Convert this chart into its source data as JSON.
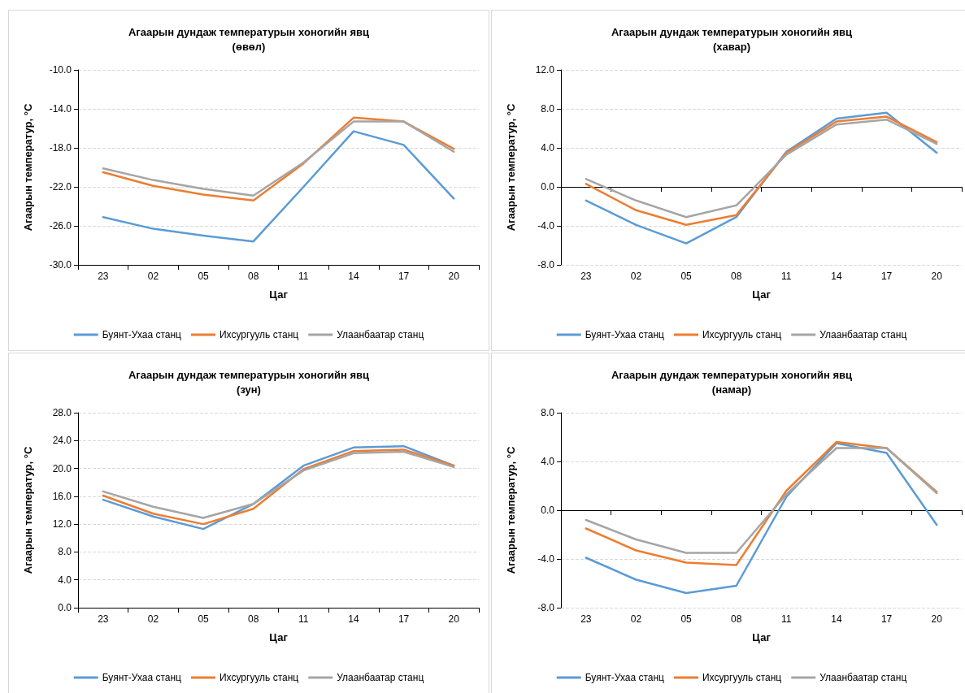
{
  "chart_data": [
    {
      "type": "line",
      "title": "Агаарын дундаж температурын хоногийн явц\n(өвөл)",
      "xlabel": "Цаг",
      "ylabel": "Агаарын температур, °C",
      "categories": [
        "23",
        "02",
        "05",
        "08",
        "11",
        "14",
        "17",
        "20"
      ],
      "ylim": [
        -30,
        -10
      ],
      "yticks": [
        {
          "value": -30,
          "label": "-30.0"
        },
        {
          "value": -26,
          "label": "-26.0"
        },
        {
          "value": -22,
          "label": "-22.0"
        },
        {
          "value": -18,
          "label": "-18.0"
        },
        {
          "value": -14,
          "label": "-14.0"
        },
        {
          "value": -10,
          "label": "-10.0"
        }
      ],
      "grid": "y",
      "legend": "bottom",
      "marker": "none",
      "line_style": "solid",
      "series": [
        {
          "name": "Буянт-Ухаа станц",
          "color": "#5b9bd5",
          "values": [
            -25.1,
            -26.3,
            -27.0,
            -27.6,
            -22.0,
            -16.3,
            -17.7,
            -23.2
          ]
        },
        {
          "name": "Ихсургууль станц",
          "color": "#ed7d31",
          "values": [
            -20.5,
            -21.9,
            -22.8,
            -23.4,
            -19.6,
            -14.9,
            -15.3,
            -18.1
          ]
        },
        {
          "name": "Улаанбаатар станц",
          "color": "#a5a5a5",
          "values": [
            -20.1,
            -21.3,
            -22.2,
            -22.9,
            -19.5,
            -15.3,
            -15.3,
            -18.4
          ]
        }
      ]
    },
    {
      "type": "line",
      "title": "Агаарын дундаж температурын хоногийн явц\n(хавар)",
      "xlabel": "Цаг",
      "ylabel": "Агаарын температур, °C",
      "categories": [
        "23",
        "02",
        "05",
        "08",
        "11",
        "14",
        "17",
        "20"
      ],
      "ylim": [
        -8,
        12
      ],
      "yticks": [
        {
          "value": -8,
          "label": "-8.0"
        },
        {
          "value": -4,
          "label": "-4.0"
        },
        {
          "value": 0,
          "label": "0.0"
        },
        {
          "value": 4,
          "label": "4.0"
        },
        {
          "value": 8,
          "label": "8.0"
        },
        {
          "value": 12,
          "label": "12.0"
        }
      ],
      "grid": "y",
      "legend": "bottom",
      "marker": "none",
      "line_style": "solid",
      "series": [
        {
          "name": "Буянт-Ухаа станц",
          "color": "#5b9bd5",
          "values": [
            -1.4,
            -3.9,
            -5.8,
            -3.1,
            3.6,
            7.0,
            7.6,
            3.5
          ]
        },
        {
          "name": "Ихсургууль станц",
          "color": "#ed7d31",
          "values": [
            0.3,
            -2.4,
            -3.9,
            -2.9,
            3.5,
            6.7,
            7.2,
            4.6
          ]
        },
        {
          "name": "Улаанбаатар станц",
          "color": "#a5a5a5",
          "values": [
            0.8,
            -1.4,
            -3.1,
            -1.9,
            3.3,
            6.4,
            6.9,
            4.4
          ]
        }
      ]
    },
    {
      "type": "line",
      "title": "Агаарын дундаж температурын хоногийн явц\n(зун)",
      "xlabel": "Цаг",
      "ylabel": "Агаарын температур, °C",
      "categories": [
        "23",
        "02",
        "05",
        "08",
        "11",
        "14",
        "17",
        "20"
      ],
      "ylim": [
        0,
        28
      ],
      "yticks": [
        {
          "value": 0,
          "label": "0.0"
        },
        {
          "value": 4,
          "label": "4.0"
        },
        {
          "value": 8,
          "label": "8.0"
        },
        {
          "value": 12,
          "label": "12.0"
        },
        {
          "value": 16,
          "label": "16.0"
        },
        {
          "value": 20,
          "label": "20.0"
        },
        {
          "value": 24,
          "label": "24.0"
        },
        {
          "value": 28,
          "label": "28.0"
        }
      ],
      "grid": "y",
      "legend": "bottom",
      "marker": "none",
      "line_style": "solid",
      "series": [
        {
          "name": "Буянт-Ухаа станц",
          "color": "#5b9bd5",
          "values": [
            15.5,
            13.1,
            11.3,
            14.9,
            20.4,
            23.0,
            23.2,
            20.4
          ]
        },
        {
          "name": "Ихсургууль станц",
          "color": "#ed7d31",
          "values": [
            16.1,
            13.5,
            12.0,
            14.2,
            19.9,
            22.5,
            22.7,
            20.4
          ]
        },
        {
          "name": "Улаанбаатар станц",
          "color": "#a5a5a5",
          "values": [
            16.7,
            14.5,
            12.9,
            14.9,
            19.7,
            22.2,
            22.4,
            20.2
          ]
        }
      ]
    },
    {
      "type": "line",
      "title": "Агаарын дундаж температурын хоногийн явц\n(намар)",
      "xlabel": "Цаг",
      "ylabel": "Агаарын температур, °C",
      "categories": [
        "23",
        "02",
        "05",
        "08",
        "11",
        "14",
        "17",
        "20"
      ],
      "ylim": [
        -8,
        8
      ],
      "yticks": [
        {
          "value": -8,
          "label": "-8.0"
        },
        {
          "value": -4,
          "label": "-4.0"
        },
        {
          "value": 0,
          "label": "0.0"
        },
        {
          "value": 4,
          "label": "4.0"
        },
        {
          "value": 8,
          "label": "8.0"
        }
      ],
      "grid": "y",
      "legend": "bottom",
      "marker": "none",
      "line_style": "solid",
      "series": [
        {
          "name": "Буянт-Ухаа станц",
          "color": "#5b9bd5",
          "values": [
            -3.9,
            -5.7,
            -6.8,
            -6.2,
            1.1,
            5.5,
            4.7,
            -1.2
          ]
        },
        {
          "name": "Ихсургууль станц",
          "color": "#ed7d31",
          "values": [
            -1.5,
            -3.3,
            -4.3,
            -4.5,
            1.6,
            5.6,
            5.1,
            1.5
          ]
        },
        {
          "name": "Улаанбаатар станц",
          "color": "#a5a5a5",
          "values": [
            -0.8,
            -2.4,
            -3.5,
            -3.5,
            1.3,
            5.1,
            5.1,
            1.4
          ]
        }
      ]
    }
  ]
}
